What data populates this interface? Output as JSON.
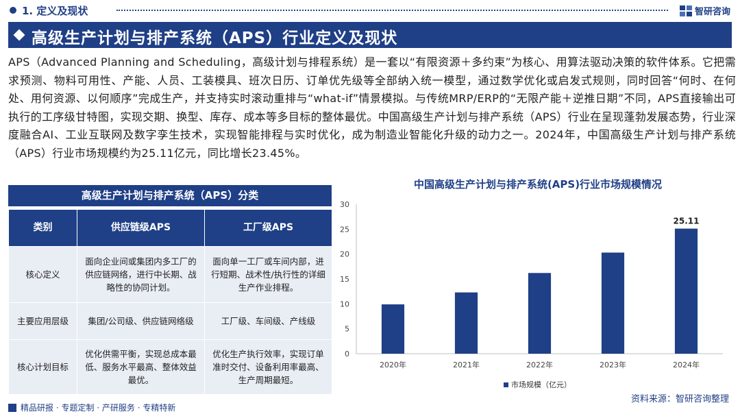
{
  "header": {
    "section_title": "1. 定义及现状",
    "brand": "智研咨询"
  },
  "banner": {
    "title": "高级生产计划与排产系统（APS）行业定义及现状"
  },
  "paragraph": "APS（Advanced Planning and Scheduling，高级计划与排程系统）是一套以“有限资源＋多约束”为核心、用算法驱动决策的软件体系。它把需求预测、物料可用性、产能、人员、工装模具、班次日历、订单优先级等全部纳入统一模型，通过数学优化或启发式规则，同时回答“何时、在何处、用何资源、以何顺序”完成生产，并支持实时滚动重排与“what-if”情景模拟。与传统MRP/ERP的“无限产能＋逆推日期”不同，APS直接输出可执行的工序级甘特图，实现交期、换型、库存、成本等多目标的整体最优。中国高级生产计划与排产系统（APS）行业在呈现蓬勃发展态势，行业深度融合AI、工业互联网及数字孪生技术，实现智能排程与实时优化，成为制造业智能化升级的动力之一。2024年，中国高级生产计划与排产系统（APS）行业市场规模约为25.11亿元，同比增长23.45%。",
  "table": {
    "title": "高级生产计划与排产系统（APS）分类",
    "headers": [
      "类别",
      "供应链级APS",
      "工厂级APS"
    ],
    "rows": [
      [
        "核心定义",
        "面向企业间或集团内多工厂的供应链网络，进行中长期、战略性的协同计划。",
        "面向单一工厂或车间内部，进行短期、战术性/执行性的详细生产作业排程。"
      ],
      [
        "主要应用层级",
        "集团/公司级、供应链网络级",
        "工厂级、车间级、产线级"
      ],
      [
        "核心计划目标",
        "优化供需平衡，实现总成本最低、服务水平最高、整体效益最优。",
        "优化生产执行效率，实现订单准时交付、设备利用率最高、生产周期最短。"
      ]
    ]
  },
  "chart_title": "中国高级生产计划与排产系统(APS)行业市场规模情况",
  "chart_data": {
    "type": "bar",
    "title": "中国高级生产计划与排产系统(APS)行业市场规模情况",
    "categories": [
      "2020年",
      "2021年",
      "2022年",
      "2023年",
      "2024年"
    ],
    "series": [
      {
        "name": "市场规模（亿元）",
        "values": [
          9.9,
          12.3,
          16.2,
          20.3,
          25.11
        ]
      }
    ],
    "data_labels": [
      "",
      "",
      "",
      "",
      "25.11"
    ],
    "ylim": [
      0,
      30
    ],
    "yticks": [
      0,
      5,
      10,
      15,
      20,
      25,
      30
    ],
    "grid": false,
    "legend": "bottom",
    "color": "#1f3f86"
  },
  "legend_label": "市场规模（亿元）",
  "source": "资料来源：智研咨询整理",
  "footer": "精品研报 · 专题定制 · 产研服务 · 专精特新"
}
